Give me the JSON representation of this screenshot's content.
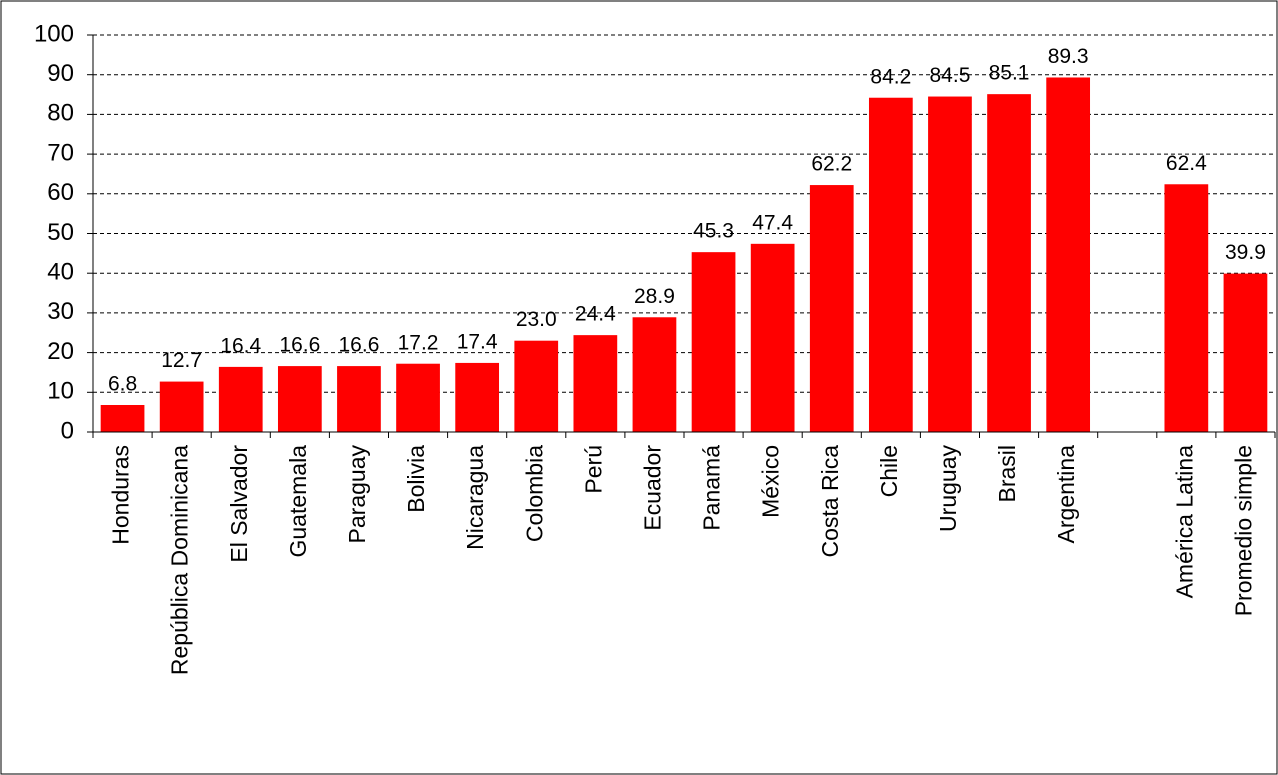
{
  "chart_data": {
    "type": "bar",
    "categories": [
      "Honduras",
      "República Dominicana",
      "El Salvador",
      "Guatemala",
      "Paraguay",
      "Bolivia",
      "Nicaragua",
      "Colombia",
      "Perú",
      "Ecuador",
      "Panamá",
      "México",
      "Costa Rica",
      "Chile",
      "Uruguay",
      "Brasil",
      "Argentina",
      null,
      "América Latina",
      "Promedio simple"
    ],
    "values": [
      6.8,
      12.7,
      16.4,
      16.6,
      16.6,
      17.2,
      17.4,
      23.0,
      24.4,
      28.9,
      45.3,
      47.4,
      62.2,
      84.2,
      84.5,
      85.1,
      89.3,
      null,
      62.4,
      39.9
    ],
    "value_labels": [
      "6.8",
      "12.7",
      "16.4",
      "16.6",
      "16.6",
      "17.2",
      "17.4",
      "23.0",
      "24.4",
      "28.9",
      "45.3",
      "47.4",
      "62.2",
      "84.2",
      "84.5",
      "85.1",
      "89.3",
      null,
      "62.4",
      "39.9"
    ],
    "color": "#ff0000",
    "ylim": [
      0,
      100
    ],
    "yticks": [
      0,
      10,
      20,
      30,
      40,
      50,
      60,
      70,
      80,
      90,
      100
    ],
    "grid": true
  }
}
